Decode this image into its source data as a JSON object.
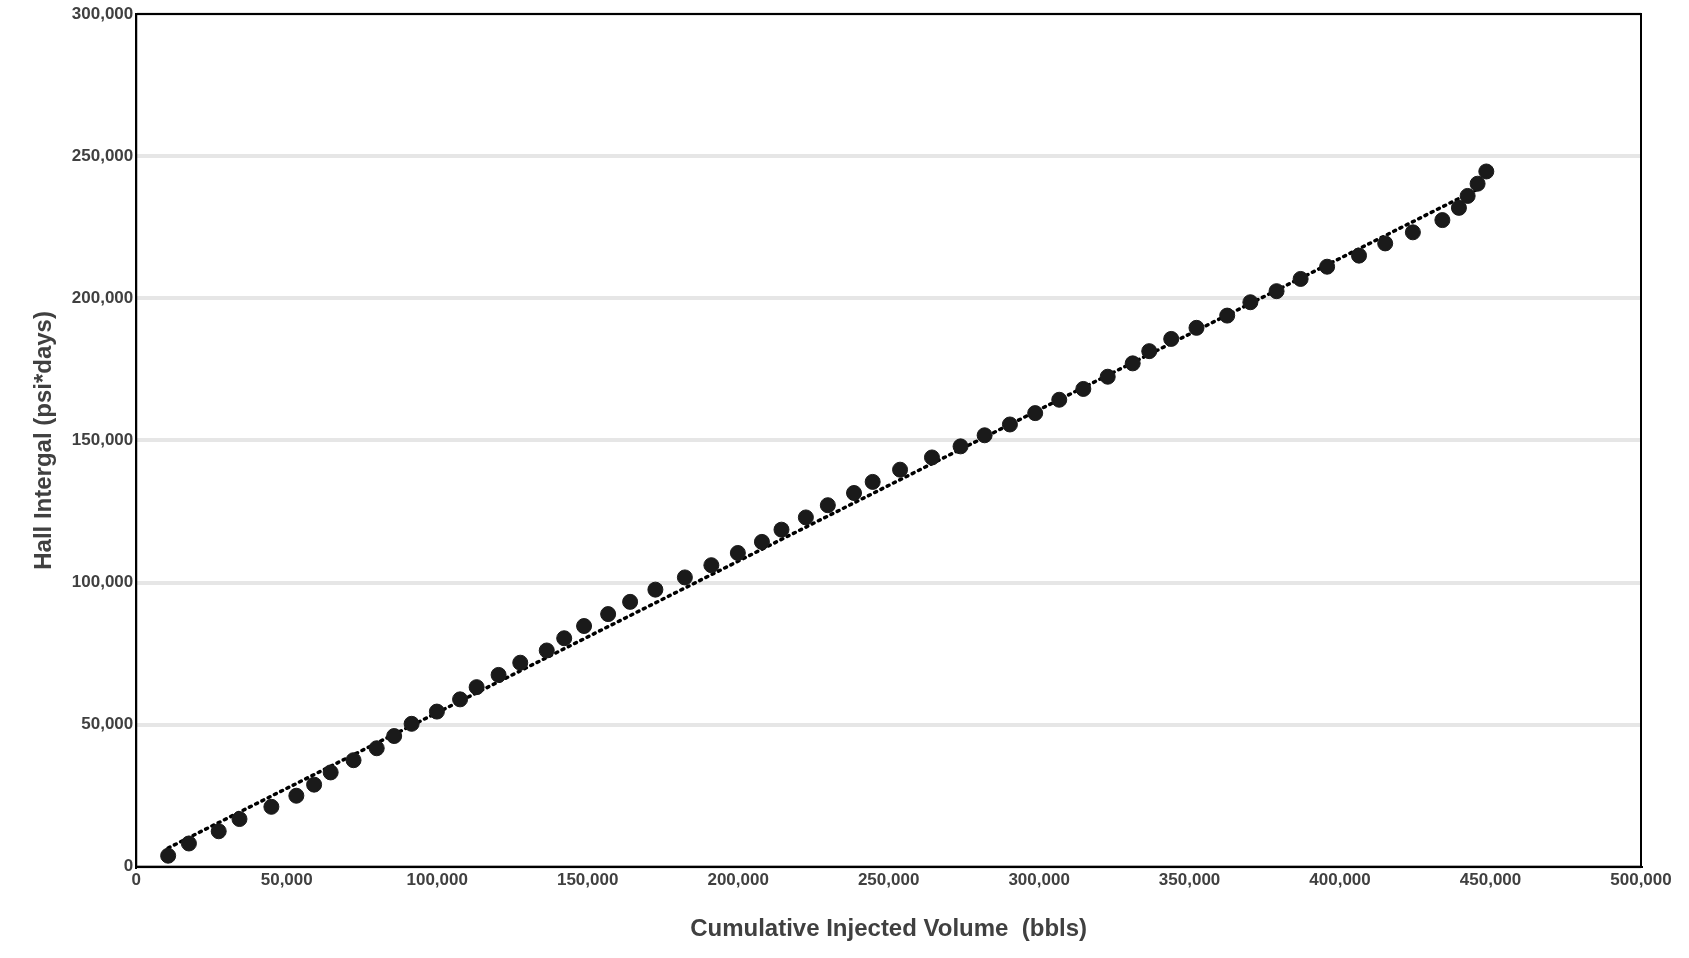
{
  "chart_data": {
    "type": "scatter",
    "xlabel": "Cumulative Injected Volume  (bbls)",
    "ylabel": "Hall Intergal (psi*days)",
    "xlim": [
      0,
      500000
    ],
    "ylim": [
      0,
      300000
    ],
    "xticks": [
      {
        "value": 0,
        "label": "0"
      },
      {
        "value": 50000,
        "label": "50,000"
      },
      {
        "value": 100000,
        "label": "100,000"
      },
      {
        "value": 150000,
        "label": "150,000"
      },
      {
        "value": 200000,
        "label": "200,000"
      },
      {
        "value": 250000,
        "label": "250,000"
      },
      {
        "value": 300000,
        "label": "300,000"
      },
      {
        "value": 350000,
        "label": "350,000"
      },
      {
        "value": 400000,
        "label": "400,000"
      },
      {
        "value": 450000,
        "label": "450,000"
      },
      {
        "value": 500000,
        "label": "500,000"
      }
    ],
    "yticks": [
      {
        "value": 0,
        "label": "0"
      },
      {
        "value": 50000,
        "label": "50,000"
      },
      {
        "value": 100000,
        "label": "100,000"
      },
      {
        "value": 150000,
        "label": "150,000"
      },
      {
        "value": 200000,
        "label": "200,000"
      },
      {
        "value": 250000,
        "label": "250,000"
      },
      {
        "value": 300000,
        "label": "300,000"
      }
    ],
    "grid": "y",
    "legend": false,
    "marker": "circle",
    "series": [
      {
        "color": "#1a1a1a",
        "x": [
          10600,
          17500,
          27400,
          34300,
          44900,
          53200,
          59100,
          64600,
          72200,
          79900,
          85700,
          91500,
          99900,
          107600,
          113100,
          120400,
          127600,
          136400,
          142200,
          148800,
          156800,
          164100,
          172500,
          182300,
          191100,
          199900,
          207900,
          214400,
          222500,
          229800,
          238500,
          244700,
          253800,
          264400,
          273900,
          281900,
          290300,
          298700,
          306700,
          314700,
          322800,
          331100,
          336600,
          343900,
          352300,
          362500,
          370200,
          378900,
          386900,
          395700,
          406300,
          415000,
          424200,
          434000,
          439500,
          442400,
          445700,
          448600
        ],
        "values": [
          3900,
          8200,
          12500,
          16800,
          21100,
          25000,
          28900,
          33200,
          37500,
          41700,
          46000,
          50300,
          54600,
          58900,
          63200,
          67500,
          71800,
          76100,
          80400,
          84700,
          88900,
          93200,
          97500,
          101800,
          106100,
          110400,
          114300,
          118600,
          122900,
          127200,
          131500,
          135400,
          139700,
          144000,
          147900,
          151800,
          155600,
          159600,
          164300,
          168100,
          172400,
          177100,
          181400,
          185700,
          189600,
          193900,
          198600,
          202500,
          206800,
          211100,
          215000,
          219300,
          223200,
          227500,
          231800,
          236000,
          240300,
          244600
        ]
      },
      {
        "type": "line",
        "color": "#000000",
        "line_style": "dotted",
        "marker": "none",
        "x": [
          10600,
          445700
        ],
        "values": [
          6600,
          238400
        ]
      }
    ]
  }
}
